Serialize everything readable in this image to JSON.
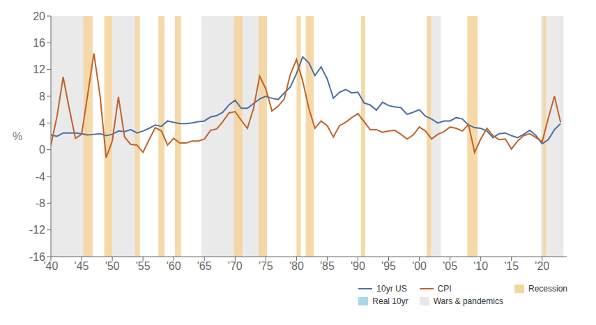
{
  "chart_data": {
    "type": "line",
    "ylabel": "%",
    "grid": false,
    "legend": "lower right",
    "xlim": [
      1940,
      2024
    ],
    "xticks": [
      {
        "value": 1940,
        "label": "'40"
      },
      {
        "value": 1945,
        "label": "'45"
      },
      {
        "value": 1950,
        "label": "'50"
      },
      {
        "value": 1955,
        "label": "'55"
      },
      {
        "value": 1960,
        "label": "'60"
      },
      {
        "value": 1965,
        "label": "'65"
      },
      {
        "value": 1970,
        "label": "'70"
      },
      {
        "value": 1975,
        "label": "'75"
      },
      {
        "value": 1980,
        "label": "'80"
      },
      {
        "value": 1985,
        "label": "'85"
      },
      {
        "value": 1990,
        "label": "'90"
      },
      {
        "value": 1995,
        "label": "'95"
      },
      {
        "value": 2000,
        "label": "'00"
      },
      {
        "value": 2005,
        "label": "'05"
      },
      {
        "value": 2010,
        "label": "'10"
      },
      {
        "value": 2015,
        "label": "'15"
      },
      {
        "value": 2020,
        "label": "'20"
      }
    ],
    "ylim": [
      -16,
      20
    ],
    "yticks": [
      -16,
      -12,
      -8,
      -4,
      0,
      4,
      8,
      12,
      16,
      20
    ],
    "x": [
      1940,
      1941,
      1942,
      1943,
      1944,
      1945,
      1946,
      1947,
      1948,
      1949,
      1950,
      1951,
      1952,
      1953,
      1954,
      1955,
      1956,
      1957,
      1958,
      1959,
      1960,
      1961,
      1962,
      1963,
      1964,
      1965,
      1966,
      1967,
      1968,
      1969,
      1970,
      1971,
      1972,
      1973,
      1974,
      1975,
      1976,
      1977,
      1978,
      1979,
      1980,
      1981,
      1982,
      1983,
      1984,
      1985,
      1986,
      1987,
      1988,
      1989,
      1990,
      1991,
      1992,
      1993,
      1994,
      1995,
      1996,
      1997,
      1998,
      1999,
      2000,
      2001,
      2002,
      2003,
      2004,
      2005,
      2006,
      2007,
      2008,
      2009,
      2010,
      2011,
      2012,
      2013,
      2014,
      2015,
      2016,
      2017,
      2018,
      2019,
      2020,
      2021,
      2022,
      2023
    ],
    "series": [
      {
        "name": "10yr US",
        "type": "line",
        "color": "#4a6fa5",
        "values": [
          2.2,
          2.0,
          2.5,
          2.5,
          2.5,
          2.4,
          2.2,
          2.3,
          2.4,
          2.1,
          2.3,
          2.8,
          2.7,
          3.0,
          2.5,
          2.8,
          3.2,
          3.7,
          3.5,
          4.3,
          4.1,
          3.9,
          3.9,
          4.0,
          4.2,
          4.3,
          4.9,
          5.1,
          5.6,
          6.7,
          7.4,
          6.2,
          6.2,
          6.9,
          7.6,
          8.0,
          7.7,
          7.5,
          8.5,
          9.4,
          11.4,
          13.9,
          13.0,
          11.1,
          12.4,
          10.6,
          7.7,
          8.6,
          9.0,
          8.5,
          8.6,
          7.0,
          6.7,
          5.9,
          7.1,
          6.6,
          6.4,
          6.3,
          5.3,
          5.6,
          6.0,
          5.0,
          4.6,
          4.0,
          4.3,
          4.3,
          4.8,
          4.6,
          3.7,
          3.3,
          3.2,
          2.8,
          1.8,
          2.4,
          2.5,
          2.1,
          1.8,
          2.3,
          2.9,
          2.1,
          0.9,
          1.5,
          3.0,
          3.9
        ]
      },
      {
        "name": "CPI",
        "type": "line",
        "color": "#c0632a",
        "values": [
          0.7,
          5.0,
          10.9,
          6.1,
          1.7,
          2.3,
          8.3,
          14.4,
          8.1,
          -1.2,
          1.3,
          7.9,
          1.9,
          0.8,
          0.7,
          -0.4,
          1.5,
          3.3,
          2.8,
          0.7,
          1.7,
          1.0,
          1.0,
          1.3,
          1.3,
          1.6,
          2.9,
          3.1,
          4.2,
          5.5,
          5.7,
          4.4,
          3.2,
          6.2,
          11.0,
          9.1,
          5.8,
          6.5,
          7.6,
          11.3,
          13.5,
          10.3,
          6.2,
          3.2,
          4.3,
          3.6,
          1.9,
          3.6,
          4.1,
          4.8,
          5.4,
          4.2,
          3.0,
          3.0,
          2.6,
          2.8,
          2.9,
          2.3,
          1.6,
          2.2,
          3.4,
          2.8,
          1.6,
          2.3,
          2.7,
          3.4,
          3.2,
          2.8,
          3.8,
          -0.4,
          1.6,
          3.2,
          2.1,
          1.5,
          1.6,
          0.1,
          1.3,
          2.1,
          2.4,
          1.8,
          1.2,
          4.7,
          8.0,
          4.1
        ]
      },
      {
        "name": "Recession",
        "type": "span",
        "color": "#f5d5a0",
        "spans": [
          [
            1945.3,
            1946.8
          ],
          [
            1948.7,
            1950.0
          ],
          [
            1953.7,
            1954.5
          ],
          [
            1957.5,
            1958.5
          ],
          [
            1960.2,
            1961.2
          ],
          [
            1969.8,
            1971.2
          ],
          [
            1973.8,
            1975.2
          ],
          [
            1980.0,
            1980.7
          ],
          [
            1981.5,
            1982.8
          ],
          [
            1990.5,
            1991.2
          ],
          [
            2001.2,
            2001.9
          ],
          [
            2007.8,
            2009.5
          ],
          [
            2020.1,
            2020.6
          ]
        ]
      },
      {
        "name": "Real 10yr",
        "type": "area",
        "color": "#a8d8ea"
      },
      {
        "name": "Wars & pandemics",
        "type": "span",
        "color": "#e8e8e8",
        "spans": [
          [
            1940.0,
            1946.0
          ],
          [
            1950.0,
            1954.0
          ],
          [
            1964.5,
            1975.0
          ],
          [
            2001.5,
            2003.5
          ],
          [
            2019.8,
            2023.5
          ]
        ]
      }
    ]
  }
}
